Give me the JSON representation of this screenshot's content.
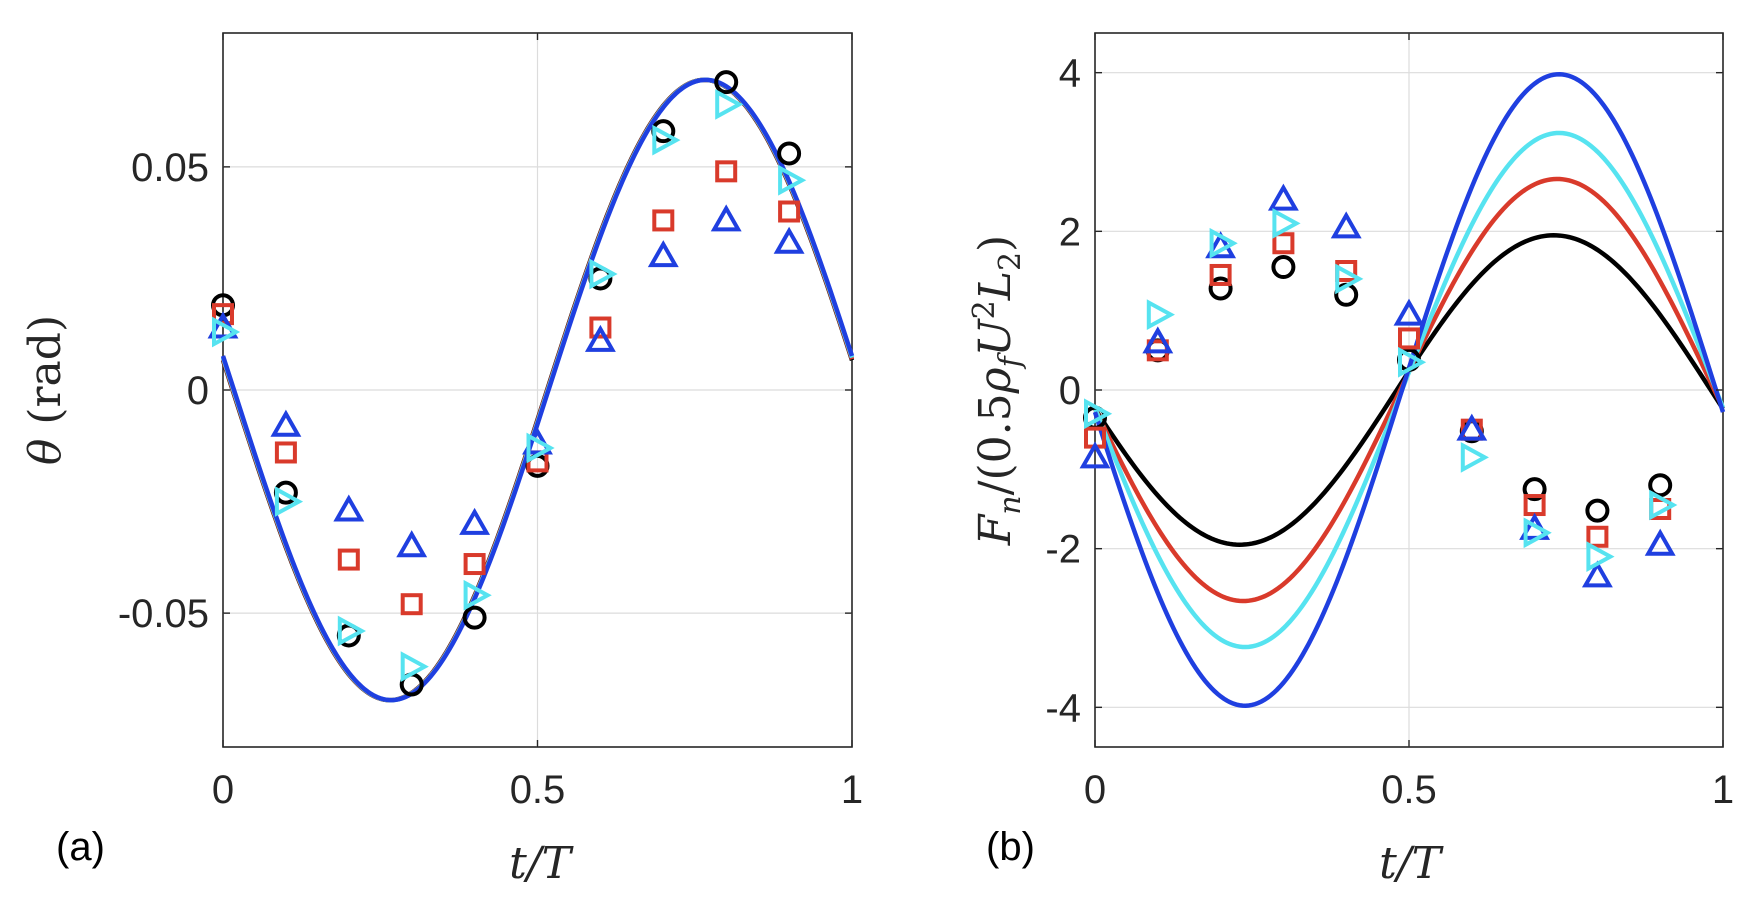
{
  "chart_data": [
    {
      "panel_label": "(a)",
      "type": "line",
      "xlabel": "t/T",
      "ylabel": "θ (rad)",
      "xlim": [
        0,
        1
      ],
      "ylim": [
        -0.08,
        0.08
      ],
      "xticks": [
        0,
        0.5,
        1
      ],
      "xtick_labels": [
        "0",
        "0.5",
        "1"
      ],
      "yticks": [
        -0.05,
        0,
        0.05
      ],
      "ytick_labels": [
        "-0.05",
        "0",
        "0.05"
      ],
      "grid": true,
      "curves": [
        {
          "color": "#000000",
          "amp": 0.0695,
          "phase_deg": 5.5
        },
        {
          "color": "#d93a2b",
          "amp": 0.0695,
          "phase_deg": 5.7
        },
        {
          "color": "#56e3f0",
          "amp": 0.0695,
          "phase_deg": 6.0
        },
        {
          "color": "#1f3fe0",
          "amp": 0.0695,
          "phase_deg": 6.3
        }
      ],
      "markers": [
        {
          "shape": "circle",
          "color": "#000000",
          "x": [
            0,
            0.1,
            0.2,
            0.3,
            0.4,
            0.5,
            0.6,
            0.7,
            0.8,
            0.9
          ],
          "y": [
            0.019,
            -0.023,
            -0.055,
            -0.066,
            -0.051,
            -0.017,
            0.025,
            0.058,
            0.069,
            0.053
          ]
        },
        {
          "shape": "square",
          "color": "#d93a2b",
          "x": [
            0,
            0.1,
            0.2,
            0.3,
            0.4,
            0.5,
            0.6,
            0.7,
            0.8,
            0.9
          ],
          "y": [
            0.017,
            -0.014,
            -0.038,
            -0.048,
            -0.039,
            -0.016,
            0.014,
            0.038,
            0.049,
            0.04
          ]
        },
        {
          "shape": "triangle-up",
          "color": "#1f3fe0",
          "x": [
            0,
            0.1,
            0.2,
            0.3,
            0.4,
            0.5,
            0.6,
            0.7,
            0.8,
            0.9
          ],
          "y": [
            0.014,
            -0.008,
            -0.027,
            -0.035,
            -0.03,
            -0.012,
            0.011,
            0.03,
            0.038,
            0.033
          ]
        },
        {
          "shape": "triangle-right",
          "color": "#56e3f0",
          "x": [
            0,
            0.1,
            0.2,
            0.3,
            0.4,
            0.5,
            0.6,
            0.7,
            0.8,
            0.9
          ],
          "y": [
            0.013,
            -0.025,
            -0.054,
            -0.062,
            -0.046,
            -0.013,
            0.026,
            0.056,
            0.064,
            0.047
          ]
        }
      ]
    },
    {
      "panel_label": "(b)",
      "type": "line",
      "xlabel": "t/T",
      "ylabel": "F_n/(0.5ρ_f U²L₂)",
      "xlim": [
        0,
        1
      ],
      "ylim": [
        -4.5,
        4.5
      ],
      "xticks": [
        0,
        0.5,
        1
      ],
      "xtick_labels": [
        "0",
        "0.5",
        "1"
      ],
      "yticks": [
        -4,
        -2,
        0,
        2,
        4
      ],
      "ytick_labels": [
        "-4",
        "-2",
        "0",
        "2",
        "4"
      ],
      "grid": true,
      "curves": [
        {
          "color": "#000000",
          "amp": 1.95,
          "phase_deg": -7
        },
        {
          "color": "#d93a2b",
          "amp": 2.66,
          "phase_deg": -5
        },
        {
          "color": "#56e3f0",
          "amp": 3.24,
          "phase_deg": -4
        },
        {
          "color": "#1f3fe0",
          "amp": 3.98,
          "phase_deg": -4
        }
      ],
      "markers": [
        {
          "shape": "circle",
          "color": "#000000",
          "x": [
            0,
            0.1,
            0.2,
            0.3,
            0.4,
            0.5,
            0.6,
            0.7,
            0.8,
            0.9
          ],
          "y": [
            -0.35,
            0.5,
            1.28,
            1.55,
            1.2,
            0.38,
            -0.52,
            -1.25,
            -1.52,
            -1.2
          ]
        },
        {
          "shape": "square",
          "color": "#d93a2b",
          "x": [
            0,
            0.1,
            0.2,
            0.3,
            0.4,
            0.5,
            0.6,
            0.7,
            0.8,
            0.9
          ],
          "y": [
            -0.6,
            0.5,
            1.45,
            1.85,
            1.5,
            0.65,
            -0.5,
            -1.45,
            -1.85,
            -1.5
          ]
        },
        {
          "shape": "triangle-up",
          "color": "#1f3fe0",
          "x": [
            0,
            0.1,
            0.2,
            0.3,
            0.4,
            0.5,
            0.6,
            0.7,
            0.8,
            0.9
          ],
          "y": [
            -0.85,
            0.6,
            1.8,
            2.4,
            2.05,
            0.95,
            -0.5,
            -1.75,
            -2.35,
            -1.95
          ]
        },
        {
          "shape": "triangle-right",
          "color": "#56e3f0",
          "x": [
            0,
            0.1,
            0.2,
            0.3,
            0.4,
            0.5,
            0.6,
            0.7,
            0.8,
            0.9
          ],
          "y": [
            -0.3,
            0.95,
            1.85,
            2.1,
            1.4,
            0.35,
            -0.85,
            -1.8,
            -2.1,
            -1.45
          ]
        }
      ]
    }
  ]
}
